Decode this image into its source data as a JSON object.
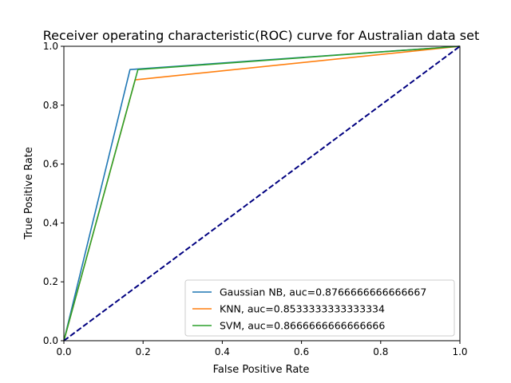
{
  "chart_data": {
    "type": "line",
    "title": "Receiver operating characteristic(ROC) curve for Australian data set",
    "xlabel": "False Positive Rate",
    "ylabel": "True Positive Rate",
    "xlim": [
      0,
      1
    ],
    "ylim": [
      0,
      1
    ],
    "grid": false,
    "legend_position": "lower-right",
    "x_ticks": [
      "0.0",
      "0.2",
      "0.4",
      "0.6",
      "0.8",
      "1.0"
    ],
    "y_ticks": [
      "0.0",
      "0.2",
      "0.4",
      "0.6",
      "0.8",
      "1.0"
    ],
    "series": [
      {
        "name": "Gaussian NB, auc=0.8766666666666667",
        "color": "#1f77b4",
        "x": [
          0,
          0.167,
          1
        ],
        "y": [
          0,
          0.921,
          1
        ]
      },
      {
        "name": "KNN, auc=0.8533333333333334",
        "color": "#ff7f0e",
        "x": [
          0,
          0.18,
          1
        ],
        "y": [
          0,
          0.886,
          1
        ]
      },
      {
        "name": "SVM, auc=0.8666666666666666",
        "color": "#2ca02c",
        "x": [
          0,
          0.187,
          1
        ],
        "y": [
          0,
          0.921,
          1
        ]
      }
    ],
    "reference_line": {
      "x": [
        0,
        1
      ],
      "y": [
        0,
        1
      ],
      "color": "#000080",
      "style": "dashed"
    }
  }
}
